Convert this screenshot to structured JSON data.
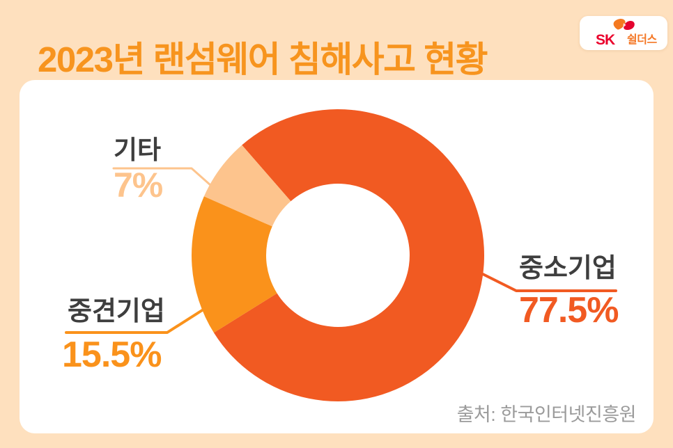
{
  "header": {
    "title": "2023년 랜섬웨어 침해사고 현황",
    "logo": {
      "sk": "SK",
      "shieldus": "쉴더스"
    }
  },
  "chart_data": {
    "type": "pie",
    "subtype": "donut",
    "title": "2023년 랜섬웨어 침해사고 현황",
    "categories": [
      "중소기업",
      "중견기업",
      "기타"
    ],
    "values": [
      77.5,
      15.5,
      7
    ],
    "unit": "%",
    "colors": [
      "#F15A22",
      "#FA921B",
      "#FDC48D"
    ],
    "start_angle_deg": -41,
    "direction": "clockwise",
    "legend_position": "callout-labels",
    "source": "출처: 한국인터넷진흥원"
  },
  "callouts": [
    {
      "label": "중소기업",
      "value": "77.5%"
    },
    {
      "label": "중견기업",
      "value": "15.5%"
    },
    {
      "label": "기타",
      "value": "7%"
    }
  ],
  "footer": {
    "source": "출처: 한국인터넷진흥원"
  },
  "colors": {
    "background": "#FEE0BE",
    "card": "#FFFFFF",
    "title": "#F7941E",
    "label_text": "#3E3E3E",
    "source_text": "#9B9B9B",
    "sk_red": "#EA002C",
    "shieldus_orange": "#F47725"
  }
}
